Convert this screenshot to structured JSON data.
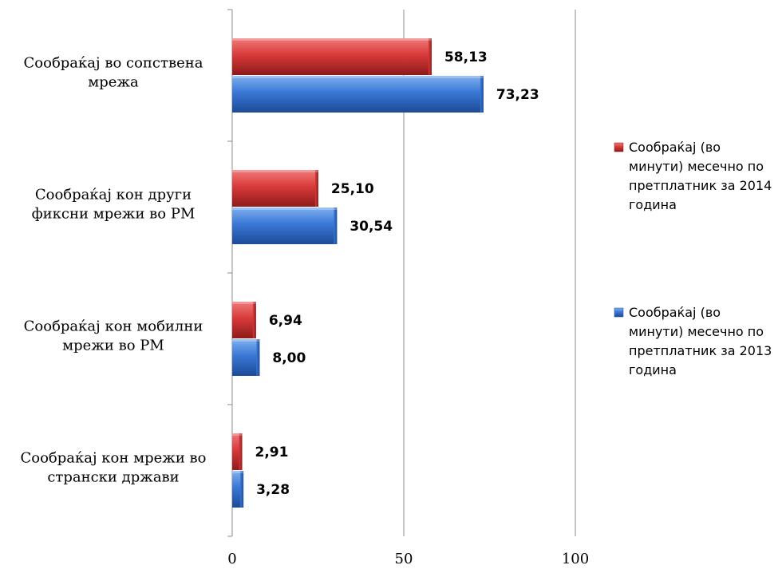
{
  "chart_data": {
    "type": "bar",
    "orientation": "horizontal",
    "categories": [
      [
        "Сообраќај во сопствена",
        "мрежа"
      ],
      [
        "Сообраќај кон други",
        "фиксни мрежи во РМ"
      ],
      [
        "Сообраќај кон мобилни",
        "мрежи во РМ"
      ],
      [
        "Сообраќај кон мрежи во",
        "странски држави"
      ]
    ],
    "series": [
      {
        "name": [
          "Сообраќај  (во",
          "минути) месечно по",
          "претплатник за 2014",
          "година"
        ],
        "values": [
          58.13,
          25.1,
          6.94,
          2.91
        ],
        "labels": [
          "58,13",
          "25,10",
          "6,94",
          "2,91"
        ],
        "color": "#d93a3a",
        "color_dark": "#8e1a1a",
        "color_light": "#f07a7a"
      },
      {
        "name": [
          "Сообраќај  (во",
          "минути) месечно по",
          "претплатник за 2013",
          "година"
        ],
        "values": [
          73.23,
          30.54,
          8.0,
          3.28
        ],
        "labels": [
          "73,23",
          "30,54",
          "8,00",
          "3,28"
        ],
        "color": "#3a78d6",
        "color_dark": "#1c4a96",
        "color_light": "#7fb0ef"
      }
    ],
    "x_ticks": [
      0,
      50,
      100
    ],
    "xlim": [
      0,
      100
    ],
    "grid": true,
    "legend_position": "right"
  }
}
